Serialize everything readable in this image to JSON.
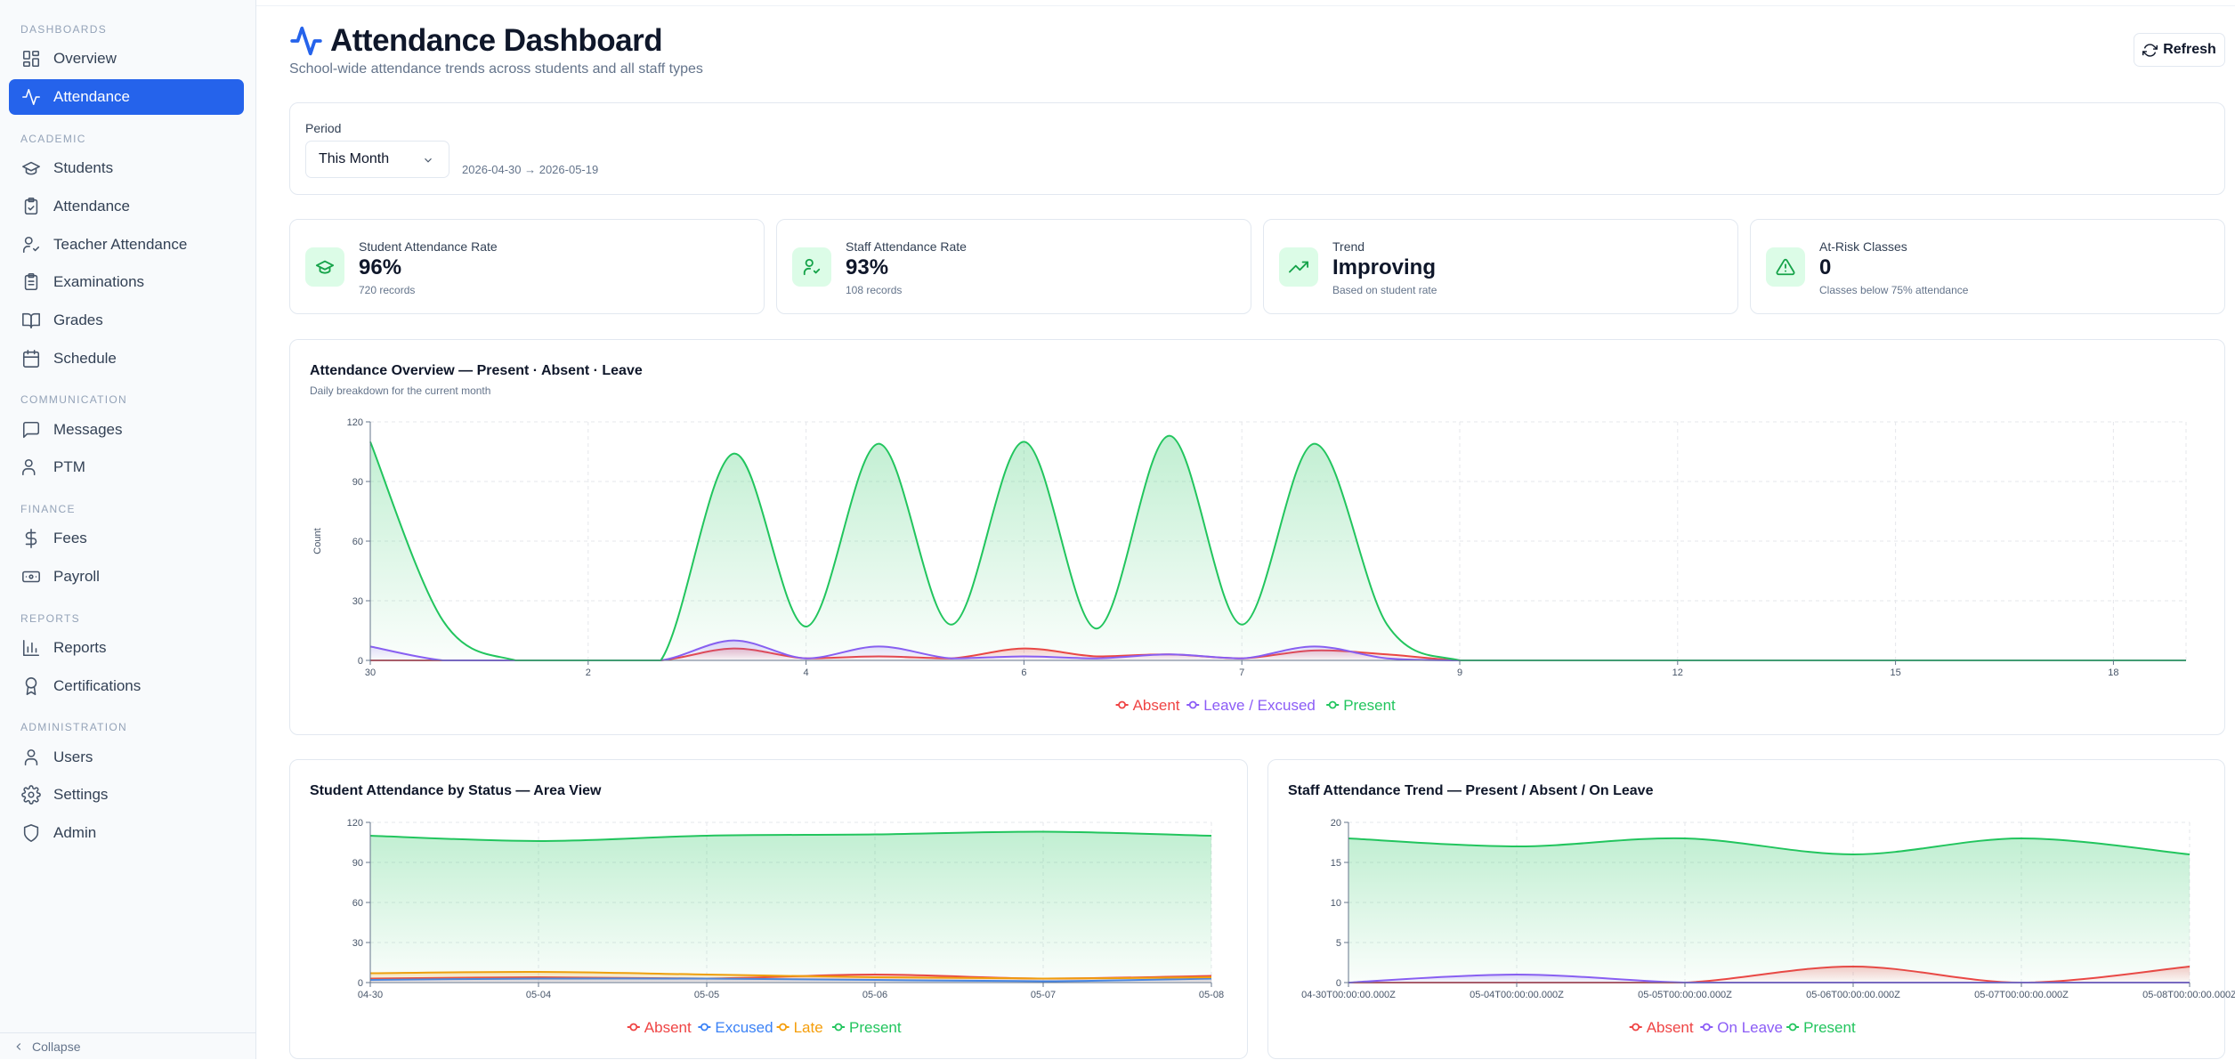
{
  "sidebar": {
    "sections": [
      {
        "title": "DASHBOARDS",
        "items": [
          {
            "label": "Overview",
            "icon": "layout-grid-icon"
          },
          {
            "label": "Attendance",
            "icon": "activity-icon",
            "active": true
          }
        ]
      },
      {
        "title": "ACADEMIC",
        "items": [
          {
            "label": "Students",
            "icon": "graduation-cap-icon"
          },
          {
            "label": "Attendance",
            "icon": "clipboard-check-icon"
          },
          {
            "label": "Teacher Attendance",
            "icon": "user-check-icon"
          },
          {
            "label": "Examinations",
            "icon": "clipboard-list-icon"
          },
          {
            "label": "Grades",
            "icon": "book-open-icon"
          },
          {
            "label": "Schedule",
            "icon": "calendar-icon"
          }
        ]
      },
      {
        "title": "COMMUNICATION",
        "items": [
          {
            "label": "Messages",
            "icon": "message-square-icon"
          },
          {
            "label": "PTM",
            "icon": "users-icon"
          }
        ]
      },
      {
        "title": "FINANCE",
        "items": [
          {
            "label": "Fees",
            "icon": "dollar-sign-icon"
          },
          {
            "label": "Payroll",
            "icon": "banknote-icon"
          }
        ]
      },
      {
        "title": "REPORTS",
        "items": [
          {
            "label": "Reports",
            "icon": "bar-chart-icon"
          },
          {
            "label": "Certifications",
            "icon": "award-icon"
          }
        ]
      },
      {
        "title": "ADMINISTRATION",
        "items": [
          {
            "label": "Users",
            "icon": "user-icon"
          },
          {
            "label": "Settings",
            "icon": "settings-icon"
          },
          {
            "label": "Admin",
            "icon": "shield-icon"
          }
        ]
      }
    ],
    "collapse_label": "Collapse"
  },
  "header": {
    "title": "Attendance Dashboard",
    "subtitle": "School-wide attendance trends across students and all staff types",
    "refresh_label": "Refresh"
  },
  "filter": {
    "period_label": "Period",
    "period_value": "This Month",
    "range_text": "2026-04-30 → 2026-05-19"
  },
  "kpis": [
    {
      "label": "Student Attendance Rate",
      "value": "96%",
      "sub": "720 records",
      "icon": "graduation-cap-icon"
    },
    {
      "label": "Staff Attendance Rate",
      "value": "93%",
      "sub": "108 records",
      "icon": "user-check-icon"
    },
    {
      "label": "Trend",
      "value": "Improving",
      "sub": "Based on student rate",
      "icon": "trending-up-icon"
    },
    {
      "label": "At-Risk Classes",
      "value": "0",
      "sub": "Classes below 75% attendance",
      "icon": "alert-triangle-icon"
    }
  ],
  "colors": {
    "present": "#22c55e",
    "absent": "#ef4444",
    "leave": "#8b5cf6",
    "excused": "#3b82f6",
    "late": "#f59e0b",
    "accent": "#2563eb"
  },
  "chart_data": [
    {
      "type": "area",
      "title": "Attendance Overview — Present · Absent · Leave",
      "subtitle": "Daily breakdown for the current month",
      "ylabel": "Count",
      "ylim": [
        0,
        120
      ],
      "yticks": [
        0,
        30,
        60,
        90,
        120
      ],
      "xlim": [
        0,
        25
      ],
      "xticks": [
        {
          "x": 0,
          "label": "30"
        },
        {
          "x": 3,
          "label": "2"
        },
        {
          "x": 6,
          "label": "4"
        },
        {
          "x": 9,
          "label": "6"
        },
        {
          "x": 12,
          "label": "7"
        },
        {
          "x": 15,
          "label": "9"
        },
        {
          "x": 18,
          "label": "12"
        },
        {
          "x": 21,
          "label": "15"
        },
        {
          "x": 24,
          "label": "18"
        }
      ],
      "x": [
        0,
        1,
        2,
        3,
        4,
        5,
        6,
        7,
        8,
        9,
        10,
        11,
        12,
        13,
        14,
        15,
        16,
        17,
        18,
        19,
        20,
        21,
        22,
        23,
        24,
        25
      ],
      "series": [
        {
          "name": "Absent",
          "color": "#ef4444",
          "values": [
            0,
            0,
            0,
            0,
            0,
            6,
            1,
            2,
            1,
            6,
            2,
            3,
            1,
            5,
            3,
            0,
            0,
            0,
            0,
            0,
            0,
            0,
            0,
            0,
            0,
            0
          ]
        },
        {
          "name": "Leave / Excused",
          "color": "#8b5cf6",
          "values": [
            7,
            0,
            0,
            0,
            0,
            10,
            1,
            7,
            1,
            2,
            1,
            3,
            1,
            7,
            1,
            0,
            0,
            0,
            0,
            0,
            0,
            0,
            0,
            0,
            0,
            0
          ]
        },
        {
          "name": "Present",
          "color": "#22c55e",
          "values": [
            110,
            20,
            0,
            0,
            0,
            104,
            17,
            109,
            18,
            110,
            16,
            113,
            18,
            109,
            18,
            0,
            0,
            0,
            0,
            0,
            0,
            0,
            0,
            0,
            0,
            0
          ]
        }
      ],
      "legend": [
        "Absent",
        "Leave / Excused",
        "Present"
      ],
      "grid": true
    },
    {
      "type": "area",
      "title": "Student Attendance by Status — Area View",
      "ylim": [
        0,
        120
      ],
      "yticks": [
        0,
        30,
        60,
        90,
        120
      ],
      "categories": [
        "04-30",
        "05-04",
        "05-05",
        "05-06",
        "05-07",
        "05-08"
      ],
      "series": [
        {
          "name": "Absent",
          "color": "#ef4444",
          "values": [
            3,
            4,
            3,
            6,
            3,
            5
          ]
        },
        {
          "name": "Excused",
          "color": "#3b82f6",
          "values": [
            2,
            3,
            3,
            2,
            1,
            3
          ]
        },
        {
          "name": "Late",
          "color": "#f59e0b",
          "values": [
            7,
            8,
            6,
            4,
            3,
            4
          ]
        },
        {
          "name": "Present",
          "color": "#22c55e",
          "values": [
            110,
            106,
            110,
            111,
            113,
            110
          ]
        }
      ],
      "legend": [
        "Absent",
        "Excused",
        "Late",
        "Present"
      ],
      "grid": true
    },
    {
      "type": "area",
      "title": "Staff Attendance Trend — Present / Absent / On Leave",
      "ylim": [
        0,
        20
      ],
      "yticks": [
        0,
        5,
        10,
        15,
        20
      ],
      "categories": [
        "04-30T00:00:00.000Z",
        "05-04T00:00:00.000Z",
        "05-05T00:00:00.000Z",
        "05-06T00:00:00.000Z",
        "05-07T00:00:00.000Z",
        "05-08T00:00:00.000Z"
      ],
      "series": [
        {
          "name": "Absent",
          "color": "#ef4444",
          "values": [
            0,
            0,
            0,
            2,
            0,
            2
          ]
        },
        {
          "name": "On Leave",
          "color": "#8b5cf6",
          "values": [
            0,
            1,
            0,
            0,
            0,
            0
          ]
        },
        {
          "name": "Present",
          "color": "#22c55e",
          "values": [
            18,
            17,
            18,
            16,
            18,
            16
          ]
        }
      ],
      "legend": [
        "Absent",
        "On Leave",
        "Present"
      ],
      "grid": true
    }
  ]
}
